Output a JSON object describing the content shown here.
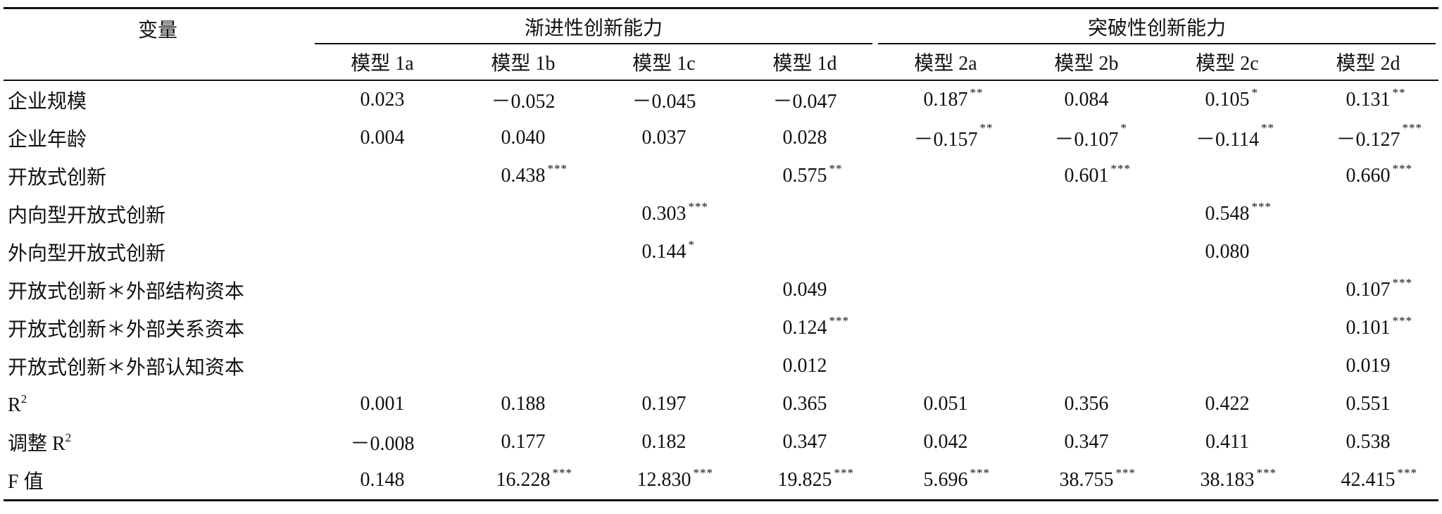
{
  "table": {
    "corner": "变量",
    "groups": [
      "渐进性创新能力",
      "突破性创新能力"
    ],
    "models": [
      "模型 1a",
      "模型 1b",
      "模型 1c",
      "模型 1d",
      "模型 2a",
      "模型 2b",
      "模型 2c",
      "模型 2d"
    ],
    "rows": [
      {
        "label": {
          "text": "企业规模"
        },
        "cells": [
          {
            "text": "0.023"
          },
          {
            "text": "－0.052"
          },
          {
            "text": "－0.045"
          },
          {
            "text": "－0.047"
          },
          {
            "text": "0.187",
            "sup": "**"
          },
          {
            "text": "0.084"
          },
          {
            "text": "0.105",
            "sup": "*"
          },
          {
            "text": "0.131",
            "sup": "**"
          }
        ]
      },
      {
        "label": {
          "text": "企业年龄"
        },
        "cells": [
          {
            "text": "0.004"
          },
          {
            "text": "0.040"
          },
          {
            "text": "0.037"
          },
          {
            "text": "0.028"
          },
          {
            "text": "－0.157",
            "sup": "**"
          },
          {
            "text": "－0.107",
            "sup": "*"
          },
          {
            "text": "－0.114",
            "sup": "**"
          },
          {
            "text": "－0.127",
            "sup": "***"
          }
        ]
      },
      {
        "label": {
          "text": "开放式创新"
        },
        "cells": [
          null,
          {
            "text": "0.438",
            "sup": "***"
          },
          null,
          {
            "text": "0.575",
            "sup": "**"
          },
          null,
          {
            "text": "0.601",
            "sup": "***"
          },
          null,
          {
            "text": "0.660",
            "sup": "***"
          }
        ]
      },
      {
        "label": {
          "text": "内向型开放式创新"
        },
        "cells": [
          null,
          null,
          {
            "text": "0.303",
            "sup": "***"
          },
          null,
          null,
          null,
          {
            "text": "0.548",
            "sup": "***"
          },
          null
        ]
      },
      {
        "label": {
          "text": "外向型开放式创新"
        },
        "cells": [
          null,
          null,
          {
            "text": "0.144",
            "sup": "*"
          },
          null,
          null,
          null,
          {
            "text": "0.080"
          },
          null
        ]
      },
      {
        "label": {
          "text": "开放式创新＊外部结构资本"
        },
        "cells": [
          null,
          null,
          null,
          {
            "text": "0.049"
          },
          null,
          null,
          null,
          {
            "text": "0.107",
            "sup": "***"
          }
        ]
      },
      {
        "label": {
          "text": "开放式创新＊外部关系资本"
        },
        "cells": [
          null,
          null,
          null,
          {
            "text": "0.124",
            "sup": "***"
          },
          null,
          null,
          null,
          {
            "text": "0.101",
            "sup": "***"
          }
        ]
      },
      {
        "label": {
          "text": "开放式创新＊外部认知资本"
        },
        "cells": [
          null,
          null,
          null,
          {
            "text": "0.012"
          },
          null,
          null,
          null,
          {
            "text": "0.019"
          }
        ]
      },
      {
        "label": {
          "text": "R",
          "sup": "2"
        },
        "cells": [
          {
            "text": "0.001"
          },
          {
            "text": "0.188"
          },
          {
            "text": "0.197"
          },
          {
            "text": "0.365"
          },
          {
            "text": "0.051"
          },
          {
            "text": "0.356"
          },
          {
            "text": "0.422"
          },
          {
            "text": "0.551"
          }
        ]
      },
      {
        "label": {
          "text": "调整 R",
          "sup": "2"
        },
        "cells": [
          {
            "text": "－0.008"
          },
          {
            "text": "0.177"
          },
          {
            "text": "0.182"
          },
          {
            "text": "0.347"
          },
          {
            "text": "0.042"
          },
          {
            "text": "0.347"
          },
          {
            "text": "0.411"
          },
          {
            "text": "0.538"
          }
        ]
      },
      {
        "label": {
          "text": "F 值"
        },
        "cells": [
          {
            "text": "0.148"
          },
          {
            "text": "16.228",
            "sup": "***"
          },
          {
            "text": "12.830",
            "sup": "***"
          },
          {
            "text": "19.825",
            "sup": "***"
          },
          {
            "text": "5.696",
            "sup": "***"
          },
          {
            "text": "38.755",
            "sup": "***"
          },
          {
            "text": "38.183",
            "sup": "***"
          },
          {
            "text": "42.415",
            "sup": "***"
          }
        ]
      }
    ]
  }
}
